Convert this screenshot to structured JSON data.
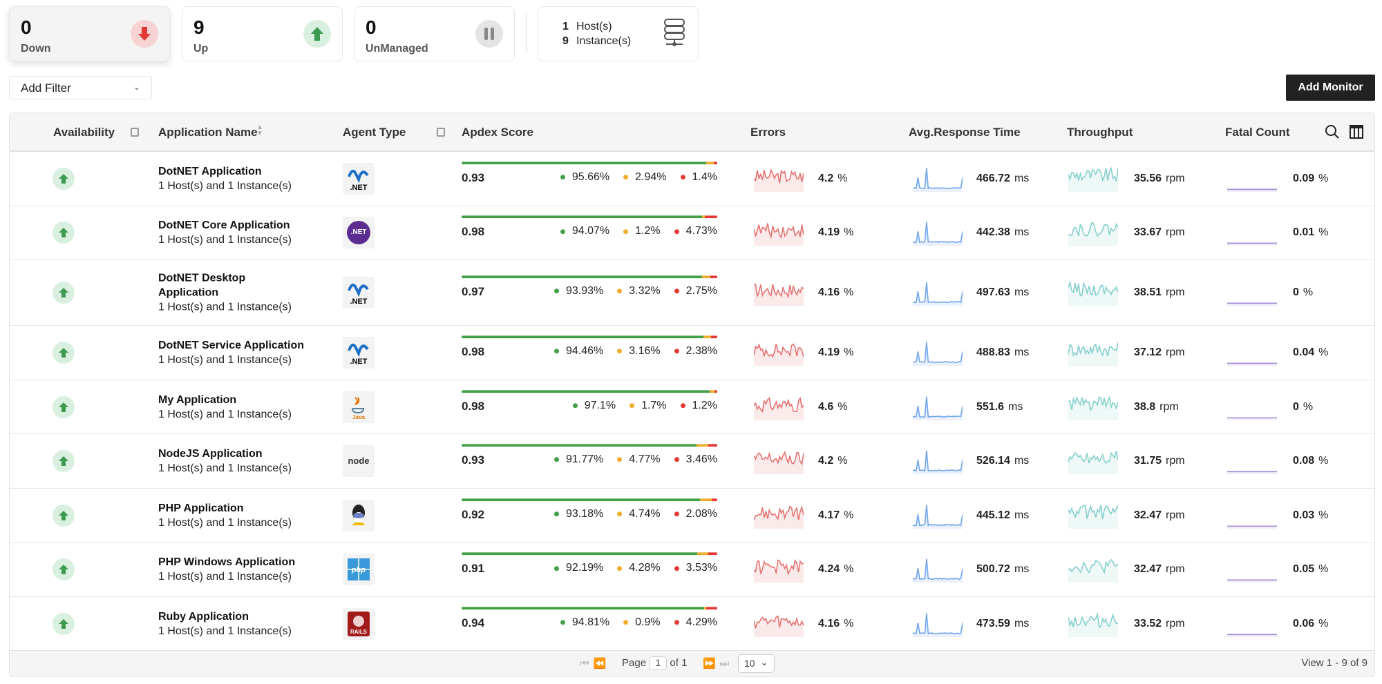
{
  "summary": {
    "down": {
      "count": "0",
      "label": "Down",
      "icon": "arrow-down-icon",
      "color": "#e53935"
    },
    "up": {
      "count": "9",
      "label": "Up",
      "icon": "arrow-up-icon",
      "color": "#3d9a50"
    },
    "unmanaged": {
      "count": "0",
      "label": "UnManaged",
      "icon": "pause-icon",
      "color": "#888888"
    },
    "hosts": {
      "host_count": "1",
      "host_label": "Host(s)",
      "instance_count": "9",
      "instance_label": "Instance(s)",
      "icon": "server-icon"
    }
  },
  "filter": {
    "label": "Add Filter"
  },
  "toolbar": {
    "add_monitor": "Add Monitor"
  },
  "columns": {
    "availability": "Availability",
    "app_name": "Application Name",
    "agent_type": "Agent Type",
    "apdex": "Apdex Score",
    "errors": "Errors",
    "response": "Avg.Response Time",
    "throughput": "Throughput",
    "fatal": "Fatal Count"
  },
  "colors": {
    "satisfied": "#43a047",
    "tolerating": "#f0ad2e",
    "frustrated": "#e53935",
    "errors": "#e57373",
    "response": "#6fa4ee",
    "throughput": "#86d0cc",
    "fatal": "#a48ad8"
  },
  "rows": [
    {
      "name": "DotNET Application",
      "hosts": "1 Host(s) and 1 Instance(s)",
      "agent": "dotnet",
      "agent_label": ".NET",
      "apdex": "0.93",
      "sat": "95.66%",
      "tol": "2.94%",
      "fru": "1.4%",
      "errors": "4.2",
      "resp": "466.72",
      "thr": "35.56",
      "fatal": "0.09"
    },
    {
      "name": "DotNET Core Application",
      "hosts": "1 Host(s) and 1 Instance(s)",
      "agent": "dotnet-core",
      "agent_label": ".NET",
      "apdex": "0.98",
      "sat": "94.07%",
      "tol": "1.2%",
      "fru": "4.73%",
      "errors": "4.19",
      "resp": "442.38",
      "thr": "33.67",
      "fatal": "0.01"
    },
    {
      "name": "DotNET Desktop Application",
      "hosts": "1 Host(s) and 1 Instance(s)",
      "agent": "dotnet",
      "agent_label": ".NET",
      "apdex": "0.97",
      "sat": "93.93%",
      "tol": "3.32%",
      "fru": "2.75%",
      "errors": "4.16",
      "resp": "497.63",
      "thr": "38.51",
      "fatal": "0"
    },
    {
      "name": "DotNET Service Application",
      "hosts": "1 Host(s) and 1 Instance(s)",
      "agent": "dotnet",
      "agent_label": ".NET",
      "apdex": "0.98",
      "sat": "94.46%",
      "tol": "3.16%",
      "fru": "2.38%",
      "errors": "4.19",
      "resp": "488.83",
      "thr": "37.12",
      "fatal": "0.04"
    },
    {
      "name": "My Application",
      "hosts": "1 Host(s) and 1 Instance(s)",
      "agent": "java",
      "agent_label": "Java",
      "apdex": "0.98",
      "sat": "97.1%",
      "tol": "1.7%",
      "fru": "1.2%",
      "errors": "4.6",
      "resp": "551.6",
      "thr": "38.8",
      "fatal": "0"
    },
    {
      "name": "NodeJS Application",
      "hosts": "1 Host(s) and 1 Instance(s)",
      "agent": "nodejs",
      "agent_label": "node",
      "apdex": "0.93",
      "sat": "91.77%",
      "tol": "4.77%",
      "fru": "3.46%",
      "errors": "4.2",
      "resp": "526.14",
      "thr": "31.75",
      "fatal": "0.08"
    },
    {
      "name": "PHP Application",
      "hosts": "1 Host(s) and 1 Instance(s)",
      "agent": "php",
      "agent_label": "php",
      "apdex": "0.92",
      "sat": "93.18%",
      "tol": "4.74%",
      "fru": "2.08%",
      "errors": "4.17",
      "resp": "445.12",
      "thr": "32.47",
      "fatal": "0.03"
    },
    {
      "name": "PHP Windows Application",
      "hosts": "1 Host(s) and 1 Instance(s)",
      "agent": "php-windows",
      "agent_label": "php",
      "apdex": "0.91",
      "sat": "92.19%",
      "tol": "4.28%",
      "fru": "3.53%",
      "errors": "4.24",
      "resp": "500.72",
      "thr": "32.47",
      "fatal": "0.05"
    },
    {
      "name": "Ruby Application",
      "hosts": "1 Host(s) and 1 Instance(s)",
      "agent": "ruby",
      "agent_label": "RAILS",
      "apdex": "0.94",
      "sat": "94.81%",
      "tol": "0.9%",
      "fru": "4.29%",
      "errors": "4.16",
      "resp": "473.59",
      "thr": "33.52",
      "fatal": "0.06"
    }
  ],
  "units": {
    "errors": "%",
    "resp": "ms",
    "thr": "rpm",
    "fatal": "%"
  },
  "pagination": {
    "page_label": "Page",
    "page": "1",
    "of_label": "of 1",
    "page_size": "10",
    "view": "View 1 - 9 of 9"
  }
}
